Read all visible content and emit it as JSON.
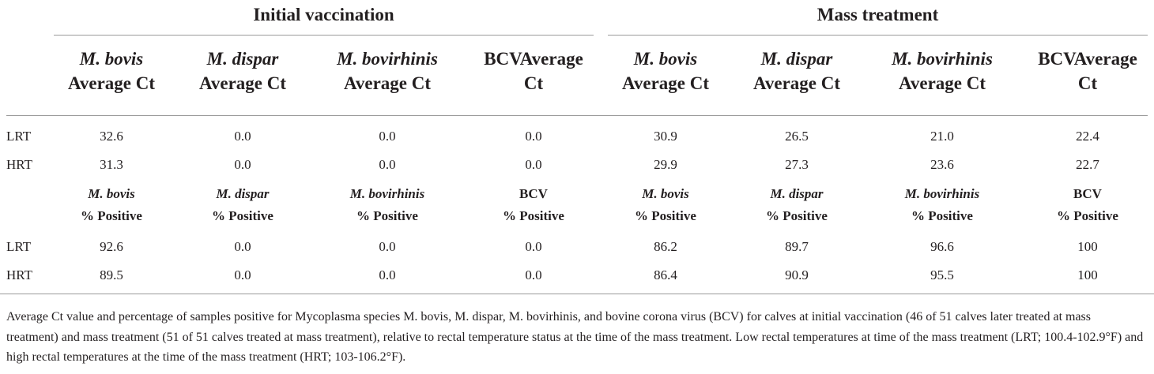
{
  "groups": {
    "initial": "Initial vaccination",
    "mass": "Mass treatment"
  },
  "columns": [
    {
      "species": "M. bovis",
      "label": "Average Ct",
      "italic": true
    },
    {
      "species": "M. dispar",
      "label": "Average Ct",
      "italic": true
    },
    {
      "species": "M. bovirhinis",
      "label": "Average Ct",
      "italic": true
    },
    {
      "species": "BCV",
      "label": "Average Ct",
      "italic": false
    },
    {
      "species": "M. bovis",
      "label": "Average Ct",
      "italic": true
    },
    {
      "species": "M. dispar",
      "label": "Average Ct",
      "italic": true
    },
    {
      "species": "M. bovirhinis",
      "label": "Average Ct",
      "italic": true
    },
    {
      "species": "BCV",
      "label": "Average Ct",
      "italic": false
    }
  ],
  "bcv_header_line1": "BCVAverage",
  "bcv_header_line2": "Ct",
  "ct_rows": [
    {
      "label": "LRT",
      "values": [
        "32.6",
        "0.0",
        "0.0",
        "0.0",
        "30.9",
        "26.5",
        "21.0",
        "22.4"
      ]
    },
    {
      "label": "HRT",
      "values": [
        "31.3",
        "0.0",
        "0.0",
        "0.0",
        "29.9",
        "27.3",
        "23.6",
        "22.7"
      ]
    }
  ],
  "positive_subheaders": [
    {
      "species": "M. bovis",
      "label": "% Positive",
      "italic": true
    },
    {
      "species": "M. dispar",
      "label": "% Positive",
      "italic": true
    },
    {
      "species": "M. bovirhinis",
      "label": "% Positive",
      "italic": true
    },
    {
      "species": "BCV",
      "label": "% Positive",
      "italic": false
    },
    {
      "species": "M. bovis",
      "label": "% Positive",
      "italic": true
    },
    {
      "species": "M. dispar",
      "label": "% Positive",
      "italic": true
    },
    {
      "species": "M. bovirhinis",
      "label": "% Positive",
      "italic": true
    },
    {
      "species": "BCV",
      "label": "% Positive",
      "italic": false
    }
  ],
  "positive_rows": [
    {
      "label": "LRT",
      "values": [
        "92.6",
        "0.0",
        "0.0",
        "0.0",
        "86.2",
        "89.7",
        "96.6",
        "100"
      ]
    },
    {
      "label": "HRT",
      "values": [
        "89.5",
        "0.0",
        "0.0",
        "0.0",
        "86.4",
        "90.9",
        "95.5",
        "100"
      ]
    }
  ],
  "caption": "Average Ct value and percentage of samples positive for Mycoplasma species M. bovis, M. dispar, M. bovirhinis, and bovine corona virus (BCV) for calves at initial vaccination (46 of 51 calves later treated at mass treatment) and mass treatment (51 of 51 calves treated at mass treatment), relative to rectal temperature status at the time of the mass treatment. Low rectal temperatures at time of the mass treatment (LRT; 100.4-102.9°F) and high rectal temperatures at the time of the mass treatment (HRT; 103-106.2°F)."
}
